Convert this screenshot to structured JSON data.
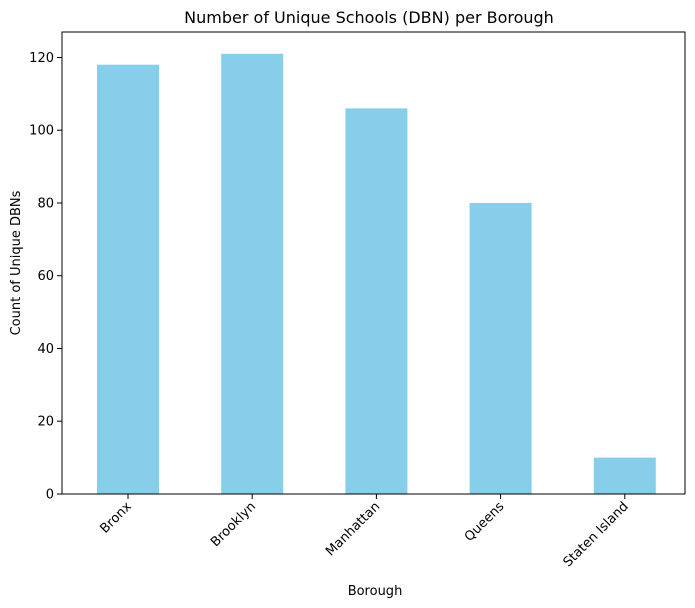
{
  "chart_data": {
    "type": "bar",
    "title": "Number of Unique Schools (DBN) per Borough",
    "xlabel": "Borough",
    "ylabel": "Count of Unique DBNs",
    "categories": [
      "Bronx",
      "Brooklyn",
      "Manhattan",
      "Queens",
      "Staten Island"
    ],
    "values": [
      118,
      121,
      106,
      80,
      10
    ],
    "ylim": [
      0,
      127
    ],
    "yticks": [
      0,
      20,
      40,
      60,
      80,
      100,
      120
    ],
    "bar_color": "#87CEEB",
    "grid": false,
    "legend": "none"
  }
}
